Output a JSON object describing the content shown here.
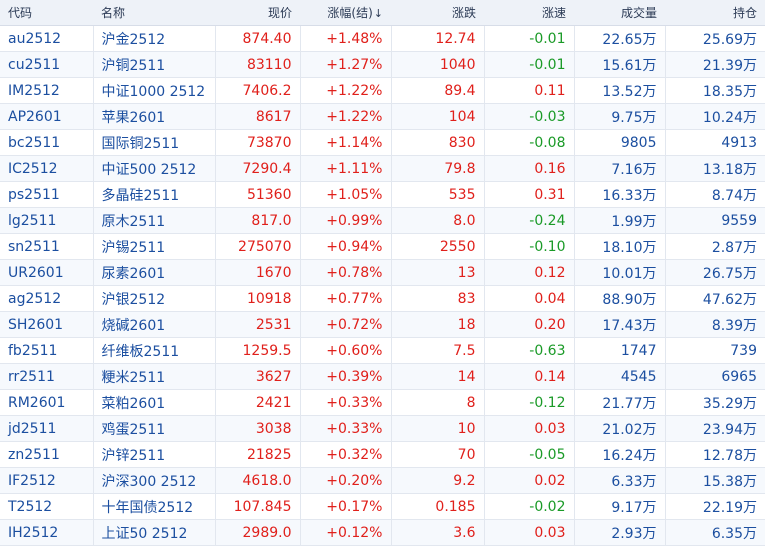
{
  "columns": {
    "code": "代码",
    "name": "名称",
    "price": "现价",
    "change_pct": "涨幅(结)",
    "change_pct_sort_glyph": "↓",
    "change": "涨跌",
    "speed": "涨速",
    "volume": "成交量",
    "open_interest": "持仓"
  },
  "colors": {
    "up": "#e0201b",
    "down": "#1a9a27",
    "plain": "#1c4fa0",
    "header_bg": "#eef2f8"
  },
  "rows": [
    {
      "code": "au2512",
      "name": "沪金2512",
      "price": "874.40",
      "change_pct": "+1.48%",
      "change": "12.74",
      "speed": "-0.01",
      "volume": "22.65万",
      "open_interest": "25.69万"
    },
    {
      "code": "cu2511",
      "name": "沪铜2511",
      "price": "83110",
      "change_pct": "+1.27%",
      "change": "1040",
      "speed": "-0.01",
      "volume": "15.61万",
      "open_interest": "21.39万"
    },
    {
      "code": "IM2512",
      "name": "中证1000 2512",
      "price": "7406.2",
      "change_pct": "+1.22%",
      "change": "89.4",
      "speed": "0.11",
      "volume": "13.52万",
      "open_interest": "18.35万"
    },
    {
      "code": "AP2601",
      "name": "苹果2601",
      "price": "8617",
      "change_pct": "+1.22%",
      "change": "104",
      "speed": "-0.03",
      "volume": "9.75万",
      "open_interest": "10.24万"
    },
    {
      "code": "bc2511",
      "name": "国际铜2511",
      "price": "73870",
      "change_pct": "+1.14%",
      "change": "830",
      "speed": "-0.08",
      "volume": "9805",
      "open_interest": "4913"
    },
    {
      "code": "IC2512",
      "name": "中证500 2512",
      "price": "7290.4",
      "change_pct": "+1.11%",
      "change": "79.8",
      "speed": "0.16",
      "volume": "7.16万",
      "open_interest": "13.18万"
    },
    {
      "code": "ps2511",
      "name": "多晶硅2511",
      "price": "51360",
      "change_pct": "+1.05%",
      "change": "535",
      "speed": "0.31",
      "volume": "16.33万",
      "open_interest": "8.74万"
    },
    {
      "code": "lg2511",
      "name": "原木2511",
      "price": "817.0",
      "change_pct": "+0.99%",
      "change": "8.0",
      "speed": "-0.24",
      "volume": "1.99万",
      "open_interest": "9559"
    },
    {
      "code": "sn2511",
      "name": "沪锡2511",
      "price": "275070",
      "change_pct": "+0.94%",
      "change": "2550",
      "speed": "-0.10",
      "volume": "18.10万",
      "open_interest": "2.87万"
    },
    {
      "code": "UR2601",
      "name": "尿素2601",
      "price": "1670",
      "change_pct": "+0.78%",
      "change": "13",
      "speed": "0.12",
      "volume": "10.01万",
      "open_interest": "26.75万"
    },
    {
      "code": "ag2512",
      "name": "沪银2512",
      "price": "10918",
      "change_pct": "+0.77%",
      "change": "83",
      "speed": "0.04",
      "volume": "88.90万",
      "open_interest": "47.62万"
    },
    {
      "code": "SH2601",
      "name": "烧碱2601",
      "price": "2531",
      "change_pct": "+0.72%",
      "change": "18",
      "speed": "0.20",
      "volume": "17.43万",
      "open_interest": "8.39万"
    },
    {
      "code": "fb2511",
      "name": "纤维板2511",
      "price": "1259.5",
      "change_pct": "+0.60%",
      "change": "7.5",
      "speed": "-0.63",
      "volume": "1747",
      "open_interest": "739"
    },
    {
      "code": "rr2511",
      "name": "粳米2511",
      "price": "3627",
      "change_pct": "+0.39%",
      "change": "14",
      "speed": "0.14",
      "volume": "4545",
      "open_interest": "6965"
    },
    {
      "code": "RM2601",
      "name": "菜粕2601",
      "price": "2421",
      "change_pct": "+0.33%",
      "change": "8",
      "speed": "-0.12",
      "volume": "21.77万",
      "open_interest": "35.29万"
    },
    {
      "code": "jd2511",
      "name": "鸡蛋2511",
      "price": "3038",
      "change_pct": "+0.33%",
      "change": "10",
      "speed": "0.03",
      "volume": "21.02万",
      "open_interest": "23.94万"
    },
    {
      "code": "zn2511",
      "name": "沪锌2511",
      "price": "21825",
      "change_pct": "+0.32%",
      "change": "70",
      "speed": "-0.05",
      "volume": "16.24万",
      "open_interest": "12.78万"
    },
    {
      "code": "IF2512",
      "name": "沪深300 2512",
      "price": "4618.0",
      "change_pct": "+0.20%",
      "change": "9.2",
      "speed": "0.02",
      "volume": "6.33万",
      "open_interest": "15.38万"
    },
    {
      "code": "T2512",
      "name": "十年国债2512",
      "price": "107.845",
      "change_pct": "+0.17%",
      "change": "0.185",
      "speed": "-0.02",
      "volume": "9.17万",
      "open_interest": "22.19万"
    },
    {
      "code": "IH2512",
      "name": "上证50 2512",
      "price": "2989.0",
      "change_pct": "+0.12%",
      "change": "3.6",
      "speed": "0.03",
      "volume": "2.93万",
      "open_interest": "6.35万"
    }
  ]
}
